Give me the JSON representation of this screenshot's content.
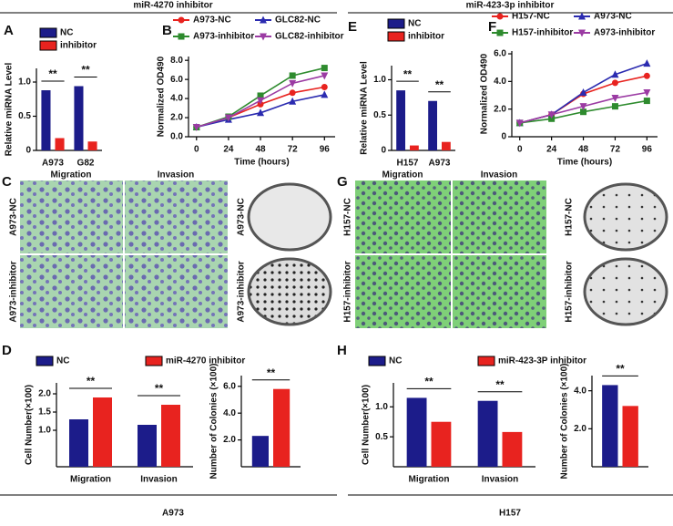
{
  "headers": [
    "miR-4270 inhibitor",
    "miR-423-3p inhibitor"
  ],
  "panels": {
    "letters": [
      "A",
      "B",
      "C",
      "D",
      "E",
      "F",
      "G",
      "H"
    ],
    "C": {
      "columns": [
        "Migration",
        "Invasion"
      ],
      "rows": [
        "A973-NC",
        "A973-inhibitor"
      ]
    },
    "G": {
      "columns": [
        "Migration",
        "Invasion"
      ],
      "rows": [
        "H157-NC",
        "H157-inhibitor"
      ]
    },
    "D_group": "A973",
    "H_group": "H157"
  },
  "chart_data": [
    {
      "type": "bar",
      "ylabel": "Relative miRNA Level",
      "categories": [
        "A973",
        "G82"
      ],
      "series": [
        {
          "name": "NC",
          "color": "#1c1c8a",
          "values": [
            0.88,
            0.94
          ]
        },
        {
          "name": "inhibitor",
          "color": "#e8231f",
          "values": [
            0.18,
            0.13
          ]
        }
      ],
      "ylim": [
        0,
        1.2
      ],
      "yticks": [
        0,
        0.5,
        {
          "value": 1,
          "label": "1.0"
        }
      ],
      "annotations": [
        "**",
        "**"
      ],
      "legend": "top-left"
    },
    {
      "type": "line",
      "ylabel": "Normalized OD490",
      "xlabel": "Time (hours)",
      "x": [
        0,
        24,
        48,
        72,
        96
      ],
      "series": [
        {
          "name": "A973-NC",
          "color": "#e8231f",
          "marker": "circle",
          "values": [
            1,
            2,
            3.4,
            4.6,
            5.2
          ]
        },
        {
          "name": "GLC82-NC",
          "color": "#2b2bb0",
          "marker": "triangle",
          "values": [
            1,
            1.8,
            2.5,
            3.7,
            4.4
          ]
        },
        {
          "name": "A973-inhibitor",
          "color": "#2e8b2e",
          "marker": "square",
          "values": [
            1,
            2.1,
            4.3,
            6.4,
            7.2
          ]
        },
        {
          "name": "GLC82-inhibitor",
          "color": "#9b3ba3",
          "marker": "triangle-down",
          "values": [
            1,
            2,
            3.8,
            5.6,
            6.4
          ]
        }
      ],
      "xlim": [
        -6,
        104
      ],
      "xticks": [
        0,
        24,
        48,
        72,
        96
      ],
      "ylim": [
        0,
        8.4
      ],
      "yticks": [
        {
          "value": 0,
          "label": "0.0"
        },
        {
          "value": 2,
          "label": "2.0"
        },
        {
          "value": 4,
          "label": "4.0"
        },
        {
          "value": 6,
          "label": "6.0"
        },
        {
          "value": 8,
          "label": "8.0"
        }
      ],
      "legend": "top"
    },
    {
      "type": "bar",
      "ylabel": "Relative miRNA Level",
      "categories": [
        "H157",
        "A973"
      ],
      "series": [
        {
          "name": "NC",
          "color": "#1c1c8a",
          "values": [
            0.85,
            0.7
          ]
        },
        {
          "name": "inhibitor",
          "color": "#e8231f",
          "values": [
            0.07,
            0.12
          ]
        }
      ],
      "ylim": [
        0,
        1.2
      ],
      "yticks": [
        0,
        0.5,
        {
          "value": 1,
          "label": "1.0"
        }
      ],
      "annotations": [
        "**",
        "**"
      ],
      "legend": "top-left"
    },
    {
      "type": "line",
      "ylabel": "Normalized OD490",
      "xlabel": "Time (hours)",
      "x": [
        0,
        24,
        48,
        72,
        96
      ],
      "series": [
        {
          "name": "H157-NC",
          "color": "#e8231f",
          "marker": "circle",
          "values": [
            1,
            1.6,
            3.1,
            3.9,
            4.4
          ]
        },
        {
          "name": "A973-NC",
          "color": "#2b2bb0",
          "marker": "triangle",
          "values": [
            1,
            1.6,
            3.2,
            4.5,
            5.3
          ]
        },
        {
          "name": "H157-inhibitor",
          "color": "#2e8b2e",
          "marker": "square",
          "values": [
            1,
            1.3,
            1.8,
            2.2,
            2.6
          ]
        },
        {
          "name": "A973-inhibitor",
          "color": "#9b3ba3",
          "marker": "triangle-down",
          "values": [
            1,
            1.6,
            2.2,
            2.8,
            3.2
          ]
        }
      ],
      "xlim": [
        -6,
        104
      ],
      "xticks": [
        0,
        24,
        48,
        72,
        96
      ],
      "ylim": [
        0,
        6.2
      ],
      "yticks": [
        0,
        {
          "value": 2,
          "label": "2.0"
        },
        {
          "value": 4,
          "label": "4.0"
        },
        {
          "value": 6,
          "label": "6.0"
        }
      ],
      "legend": "top"
    },
    {
      "type": "bar",
      "ylabel": "Cell Number(×100)",
      "categories": [
        "Migration",
        "Invasion"
      ],
      "series": [
        {
          "name": "NC",
          "color": "#1c1c8a",
          "values": [
            1.3,
            1.15
          ]
        },
        {
          "name": "miR-4270 inhibitor",
          "color": "#e8231f",
          "values": [
            1.9,
            1.7
          ]
        }
      ],
      "ylim": [
        0,
        2.3
      ],
      "yticks": [
        {
          "value": 1,
          "label": "1.0"
        },
        {
          "value": 1.5,
          "label": "1.5"
        },
        {
          "value": 2,
          "label": "2.0"
        }
      ],
      "annotations": [
        "**",
        "**"
      ],
      "legend": "above"
    },
    {
      "type": "bar",
      "ylabel": "Number of Colonies (×100)",
      "categories": [
        null
      ],
      "series": [
        {
          "color": "#1c1c8a",
          "values": [
            2.3
          ]
        },
        {
          "color": "#e8231f",
          "values": [
            5.8
          ]
        }
      ],
      "ylim": [
        0,
        6.8
      ],
      "yticks": [
        {
          "value": 2,
          "label": "2.0"
        },
        {
          "value": 4,
          "label": "4.0"
        },
        {
          "value": 6,
          "label": "6.0"
        }
      ],
      "annotations": [
        "**"
      ]
    },
    {
      "type": "bar",
      "ylabel": "Cell Number(×100)",
      "categories": [
        "Migration",
        "Invasion"
      ],
      "series": [
        {
          "name": "NC",
          "color": "#1c1c8a",
          "values": [
            1.15,
            1.1
          ]
        },
        {
          "name": "miR-423-3P inhibitor",
          "color": "#e8231f",
          "values": [
            0.75,
            0.58
          ]
        }
      ],
      "ylim": [
        0,
        1.4
      ],
      "yticks": [
        0.5,
        {
          "value": 1,
          "label": "1.0"
        }
      ],
      "annotations": [
        "**",
        "**"
      ],
      "legend": "above"
    },
    {
      "type": "bar",
      "ylabel": "Number of Colonies (×100)",
      "categories": [
        null
      ],
      "series": [
        {
          "color": "#1c1c8a",
          "values": [
            4.3
          ]
        },
        {
          "color": "#e8231f",
          "values": [
            3.2
          ]
        }
      ],
      "ylim": [
        0,
        4.8
      ],
      "yticks": [
        {
          "value": 2,
          "label": "2.0"
        },
        {
          "value": 4,
          "label": "4.0"
        }
      ],
      "annotations": [
        "**"
      ]
    }
  ]
}
